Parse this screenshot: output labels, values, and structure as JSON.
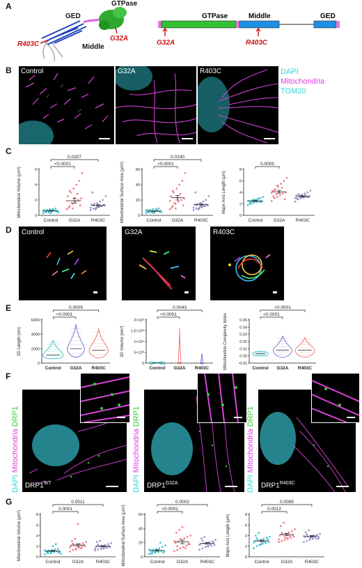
{
  "panels": {
    "A": {
      "label": "A",
      "struct_labels": {
        "ged": "GED",
        "gtpase": "GTPase",
        "middle": "Middle"
      },
      "mutations": {
        "r403c": "R403C",
        "g32a": "G32A"
      },
      "domain_labels": {
        "gtpase": "GTPase",
        "middle": "Middle",
        "ged": "GED"
      },
      "colors": {
        "gtpase": "#33c233",
        "middle": "#1f8fe6",
        "ged": "#1f8fe6",
        "ends": "#e07ad8",
        "mutation": "#cc1111"
      }
    },
    "B": {
      "label": "B",
      "titles": [
        "Control",
        "G32A",
        "R403C"
      ],
      "legend": [
        {
          "text": "DAPI",
          "color": "#2fd6d6"
        },
        {
          "text": "Mitochondria",
          "color": "#e040e0"
        },
        {
          "text": "TOM20",
          "color": "#2fd6d6"
        }
      ]
    },
    "C": {
      "label": "C"
    },
    "D": {
      "label": "D",
      "titles": [
        "Control",
        "G32A",
        "R403C"
      ]
    },
    "E": {
      "label": "E"
    },
    "F": {
      "label": "F",
      "side_text": {
        "dapi": "DAPI",
        "mito": "Mitochondria",
        "drp1": "DRP1"
      },
      "captions": [
        {
          "base": "DRP1",
          "sup": "WT"
        },
        {
          "base": "DRP1",
          "sup": "G32A"
        },
        {
          "base": "DRP1",
          "sup": "R403C"
        }
      ],
      "colors": {
        "dapi": "#2fd6d6",
        "mito": "#e040e0",
        "drp1": "#33cc33"
      }
    },
    "G": {
      "label": "G"
    }
  },
  "chart_data": [
    {
      "id": "C1",
      "type": "scatter",
      "ylabel": "Mitochondrial Volume (µm³)",
      "yticks": [
        "0",
        "2",
        "4",
        "6"
      ],
      "ylim": [
        0,
        6
      ],
      "categories": [
        "Control",
        "G32A",
        "R403C"
      ],
      "series": [
        {
          "values": [
            0.3,
            0.4,
            0.5,
            0.5,
            0.6,
            0.6,
            0.7,
            0.7,
            0.8,
            0.8,
            0.9,
            0.4,
            0.5,
            0.6,
            0.3,
            0.7,
            0.5,
            0.6,
            0.5,
            0.4
          ]
        },
        {
          "values": [
            0.8,
            1.2,
            1.5,
            1.8,
            2.0,
            2.2,
            2.5,
            3.0,
            3.5,
            4.0,
            4.5,
            5.5,
            1.0,
            1.6,
            2.3,
            2.8,
            1.3,
            1.9,
            3.2,
            0.9
          ]
        },
        {
          "values": [
            0.7,
            0.9,
            1.0,
            1.1,
            1.2,
            1.3,
            1.4,
            1.5,
            1.6,
            1.8,
            2.0,
            2.5,
            3.0,
            0.8,
            1.1,
            1.2,
            1.4,
            1.0,
            1.3,
            0.9
          ]
        }
      ],
      "means": [
        0.6,
        1.9,
        1.3
      ],
      "sems": [
        0.05,
        0.3,
        0.12
      ],
      "brackets": [
        {
          "from": 0,
          "to": 1,
          "label": "<0.0001"
        },
        {
          "from": 0,
          "to": 2,
          "label": "0.0307"
        }
      ]
    },
    {
      "id": "C2",
      "type": "scatter",
      "ylabel": "Mitochondrial Surface Area (µm²)",
      "yticks": [
        "0",
        "20",
        "40",
        "60"
      ],
      "ylim": [
        0,
        60
      ],
      "categories": [
        "Control",
        "G32A",
        "R403C"
      ],
      "series": [
        {
          "values": [
            3,
            4,
            5,
            5,
            6,
            6,
            7,
            7,
            8,
            8,
            9,
            4,
            5,
            6,
            3,
            7,
            5,
            6,
            5,
            4
          ]
        },
        {
          "values": [
            8,
            12,
            15,
            18,
            20,
            22,
            25,
            30,
            35,
            40,
            45,
            55,
            10,
            16,
            23,
            28,
            13,
            19,
            32,
            9
          ]
        },
        {
          "values": [
            7,
            9,
            10,
            11,
            12,
            13,
            14,
            15,
            16,
            18,
            20,
            25,
            30,
            8,
            11,
            12,
            14,
            10,
            13,
            9
          ]
        }
      ],
      "means": [
        5.5,
        23,
        14
      ],
      "sems": [
        0.4,
        3,
        1.2
      ],
      "brackets": [
        {
          "from": 0,
          "to": 1,
          "label": "<0.0001"
        },
        {
          "from": 0,
          "to": 2,
          "label": "0.0240"
        }
      ]
    },
    {
      "id": "C3",
      "type": "scatter",
      "ylabel": "Major Axis Length (µm)",
      "yticks": [
        "0",
        "2",
        "4",
        "6",
        "8"
      ],
      "ylim": [
        0,
        8
      ],
      "categories": [
        "Control",
        "G32A",
        "R403C"
      ],
      "series": [
        {
          "values": [
            1.8,
            2.0,
            2.2,
            2.3,
            2.4,
            2.5,
            2.5,
            2.6,
            2.7,
            2.8,
            3.0,
            3.2,
            2.1,
            2.4,
            2.6,
            2.9,
            2.3,
            2.5,
            2.2,
            2.7
          ]
        },
        {
          "values": [
            2.5,
            3.0,
            3.2,
            3.5,
            3.8,
            4.0,
            4.2,
            4.5,
            5.0,
            5.5,
            6.0,
            6.5,
            3.3,
            3.7,
            4.1,
            4.8,
            2.8,
            3.9,
            4.4,
            5.2
          ]
        },
        {
          "values": [
            2.4,
            2.8,
            3.0,
            3.1,
            3.2,
            3.3,
            3.4,
            3.5,
            3.6,
            3.8,
            4.0,
            4.3,
            2.9,
            3.1,
            3.3,
            3.5,
            3.2,
            3.0,
            3.7,
            3.4
          ]
        }
      ],
      "means": [
        2.5,
        4.1,
        3.3
      ],
      "sems": [
        0.1,
        0.25,
        0.12
      ],
      "brackets": [
        {
          "from": 0,
          "to": 1,
          "label": "0.0005"
        }
      ]
    },
    {
      "id": "E1",
      "type": "violin",
      "ylabel": "3D Length (nm)",
      "yticks": [
        "0",
        "2000",
        "4000",
        "6000"
      ],
      "ylim": [
        0,
        6000
      ],
      "categories": [
        "Control",
        "G32A",
        "R403C"
      ],
      "violins": [
        {
          "lo": 600,
          "hi": 3200,
          "med": 1100,
          "width": 0.45
        },
        {
          "lo": 800,
          "hi": 5400,
          "med": 2000,
          "width": 0.38
        },
        {
          "lo": 700,
          "hi": 4800,
          "med": 1800,
          "width": 0.42
        }
      ],
      "colors": [
        "#35b9c4",
        "#6a6ad0",
        "#f06a6a"
      ],
      "brackets": [
        {
          "from": 0,
          "to": 1,
          "label": "<0.0001"
        },
        {
          "from": 0,
          "to": 2,
          "label": "0.0009"
        }
      ]
    },
    {
      "id": "E2",
      "type": "violin",
      "ylabel": "3D Volume (nm³)",
      "yticks": [
        "0",
        "5×10⁸",
        "1×10⁹",
        "1.5×10⁹",
        "2×10⁹"
      ],
      "ylim": [
        0,
        2000000000
      ],
      "categories": [
        "Control",
        "G32A",
        "R403C"
      ],
      "violins": [
        {
          "lo": 0,
          "hi": 30000000,
          "med": 5000000,
          "width": 0.35
        },
        {
          "lo": 0,
          "hi": 1600000000,
          "med": 20000000,
          "width": 0.06
        },
        {
          "lo": 0,
          "hi": 450000000,
          "med": 10000000,
          "width": 0.05
        }
      ],
      "colors": [
        "#35b9c4",
        "#f06a6a",
        "#6a6ad0"
      ],
      "brackets": [
        {
          "from": 0,
          "to": 1,
          "label": "<0.0001"
        },
        {
          "from": 0,
          "to": 2,
          "label": "0.0043"
        }
      ]
    },
    {
      "id": "E3",
      "type": "violin",
      "ylabel": "Mitochondria Complexity Index",
      "yticks": [
        "-0.01",
        "0.00",
        "0.01",
        "0.02",
        "0.03",
        "0.04",
        "0.05"
      ],
      "ylim": [
        -0.01,
        0.05
      ],
      "categories": [
        "Control",
        "G32A",
        "R403C"
      ],
      "violins": [
        {
          "lo": 0.0,
          "hi": 0.007,
          "med": 0.003,
          "width": 0.35
        },
        {
          "lo": -0.002,
          "hi": 0.028,
          "med": 0.008,
          "width": 0.42
        },
        {
          "lo": -0.002,
          "hi": 0.026,
          "med": 0.008,
          "width": 0.44
        }
      ],
      "colors": [
        "#35b9c4",
        "#6a6ad0",
        "#f06a6a"
      ],
      "brackets": [
        {
          "from": 0,
          "to": 1,
          "label": "<0.0001"
        },
        {
          "from": 0,
          "to": 2,
          "label": "<0.0001"
        }
      ]
    },
    {
      "id": "G1",
      "type": "scatter",
      "ylabel": "Mitochondrial Volume (µm³)",
      "yticks": [
        "0",
        "2",
        "4",
        "6",
        "8"
      ],
      "ylim": [
        0,
        8
      ],
      "categories": [
        "Control",
        "G32A",
        "R403C"
      ],
      "series": [
        {
          "values": [
            0.5,
            0.7,
            0.8,
            0.9,
            1.0,
            1.0,
            1.1,
            1.2,
            1.3,
            1.4,
            1.5,
            0.6,
            0.9,
            1.1,
            2.0,
            2.4,
            0.8,
            1.2,
            1.0,
            0.7
          ]
        },
        {
          "values": [
            1.0,
            1.3,
            1.5,
            1.7,
            1.9,
            2.0,
            2.1,
            2.2,
            2.3,
            2.4,
            2.6,
            2.8,
            3.0,
            3.4,
            6.2,
            1.6,
            2.2,
            1.8,
            2.5,
            1.4
          ]
        },
        {
          "values": [
            1.2,
            1.4,
            1.5,
            1.6,
            1.7,
            1.8,
            1.9,
            2.0,
            2.1,
            2.2,
            2.4,
            2.6,
            2.8,
            3.0,
            1.6,
            1.8,
            2.0,
            1.5,
            2.3,
            1.9
          ]
        }
      ],
      "means": [
        1.1,
        2.2,
        2.0
      ],
      "sems": [
        0.1,
        0.25,
        0.1
      ],
      "brackets": [
        {
          "from": 0,
          "to": 1,
          "label": "0.0001"
        },
        {
          "from": 0,
          "to": 2,
          "label": "0.0011"
        }
      ]
    },
    {
      "id": "G2",
      "type": "scatter",
      "ylabel": "Mitochondrial Surface Area (µm²)",
      "yticks": [
        "0",
        "20",
        "40",
        "60"
      ],
      "ylim": [
        0,
        60
      ],
      "categories": [
        "Control",
        "G32A",
        "R403C"
      ],
      "series": [
        {
          "values": [
            4,
            5,
            6,
            7,
            8,
            8,
            9,
            10,
            11,
            12,
            14,
            16,
            5,
            7,
            9,
            20,
            6,
            10,
            8,
            7
          ]
        },
        {
          "values": [
            8,
            10,
            12,
            14,
            16,
            18,
            20,
            22,
            24,
            26,
            28,
            30,
            34,
            38,
            42,
            12,
            18,
            22,
            15,
            25
          ]
        },
        {
          "values": [
            10,
            12,
            14,
            15,
            16,
            17,
            18,
            19,
            20,
            21,
            22,
            24,
            26,
            28,
            15,
            18,
            20,
            17,
            23,
            19
          ]
        }
      ],
      "means": [
        9,
        21,
        19
      ],
      "sems": [
        0.9,
        2.5,
        1.2
      ],
      "brackets": [
        {
          "from": 0,
          "to": 1,
          "label": "<0.0001"
        },
        {
          "from": 0,
          "to": 2,
          "label": "0.0002"
        }
      ]
    },
    {
      "id": "G3",
      "type": "scatter",
      "ylabel": "Major Axis Length (µm)",
      "yticks": [
        "0",
        "2",
        "4",
        "6",
        "8"
      ],
      "ylim": [
        0,
        8
      ],
      "categories": [
        "Control",
        "G32A",
        "R403C"
      ],
      "series": [
        {
          "values": [
            1.6,
            2.0,
            2.2,
            2.5,
            2.6,
            2.8,
            3.0,
            3.1,
            3.2,
            3.4,
            3.6,
            3.8,
            4.0,
            4.5,
            2.4,
            2.9,
            3.3,
            2.7,
            3.5,
            2.3
          ]
        },
        {
          "values": [
            2.8,
            3.0,
            3.2,
            3.4,
            3.6,
            3.8,
            4.0,
            4.2,
            4.4,
            4.6,
            4.8,
            5.2,
            5.8,
            6.4,
            3.5,
            3.9,
            4.1,
            3.3,
            4.5,
            3.7
          ]
        },
        {
          "values": [
            2.8,
            3.0,
            3.2,
            3.4,
            3.5,
            3.6,
            3.7,
            3.8,
            3.9,
            4.0,
            4.1,
            4.3,
            4.6,
            5.0,
            3.6,
            3.8,
            3.4,
            3.9,
            4.2,
            3.5
          ]
        }
      ],
      "means": [
        3.0,
        4.2,
        3.9
      ],
      "sems": [
        0.15,
        0.2,
        0.12
      ],
      "brackets": [
        {
          "from": 0,
          "to": 1,
          "label": "0.0012"
        },
        {
          "from": 0,
          "to": 2,
          "label": "0.0085"
        }
      ]
    }
  ]
}
